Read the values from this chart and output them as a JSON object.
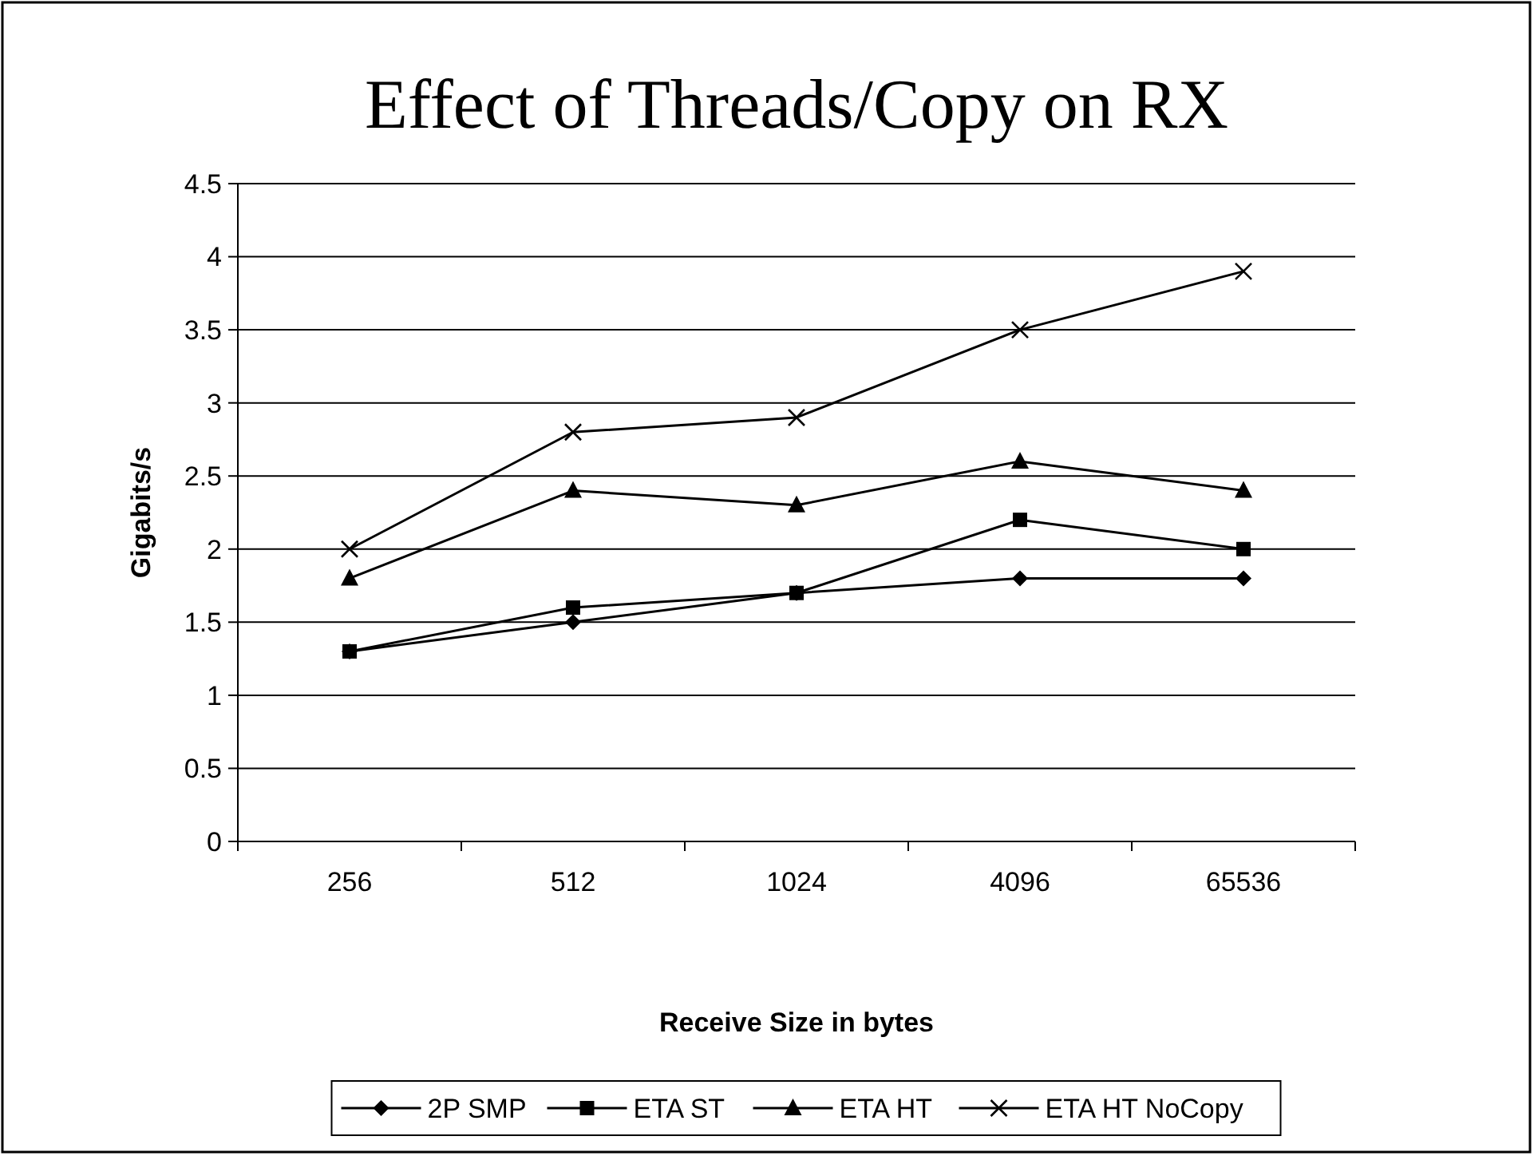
{
  "chart_data": {
    "type": "line",
    "title": "Effect of Threads/Copy on RX",
    "xlabel": "Receive Size in bytes",
    "ylabel": "Gigabits/s",
    "categories": [
      "256",
      "512",
      "1024",
      "4096",
      "65536"
    ],
    "ylim": [
      0,
      4.5
    ],
    "yticks": [
      0,
      0.5,
      1,
      1.5,
      2,
      2.5,
      3,
      3.5,
      4,
      4.5
    ],
    "grid": "y",
    "legend": "bottom",
    "line_style": "solid",
    "series": [
      {
        "name": "2P SMP",
        "color": "#000000",
        "marker": "diamond",
        "values": [
          1.3,
          1.5,
          1.7,
          1.8,
          1.8
        ]
      },
      {
        "name": "ETA ST",
        "color": "#000000",
        "marker": "square",
        "values": [
          1.3,
          1.6,
          1.7,
          2.2,
          2.0
        ]
      },
      {
        "name": "ETA HT",
        "color": "#000000",
        "marker": "triangle",
        "values": [
          1.8,
          2.4,
          2.3,
          2.6,
          2.4
        ]
      },
      {
        "name": "ETA HT NoCopy",
        "color": "#000000",
        "marker": "cross",
        "values": [
          2.0,
          2.8,
          2.9,
          3.5,
          3.9
        ]
      }
    ]
  }
}
